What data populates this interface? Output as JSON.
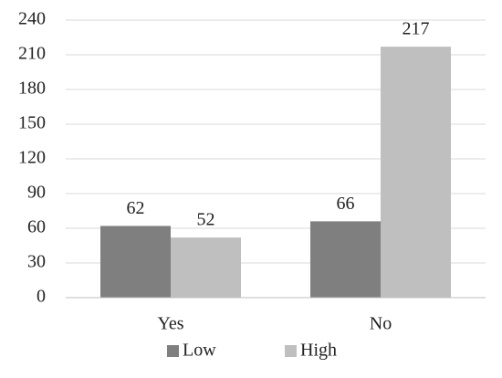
{
  "chart_data": {
    "type": "bar",
    "categories": [
      "Yes",
      "No"
    ],
    "series": [
      {
        "name": "Low",
        "color": "#7f7f7f",
        "values": [
          62,
          66
        ]
      },
      {
        "name": "High",
        "color": "#bfbfbf",
        "values": [
          52,
          217
        ]
      }
    ],
    "ylim": [
      0,
      240
    ],
    "yticks": [
      0,
      30,
      60,
      90,
      120,
      150,
      180,
      210,
      240
    ],
    "grid": true,
    "legend": "bottom"
  }
}
